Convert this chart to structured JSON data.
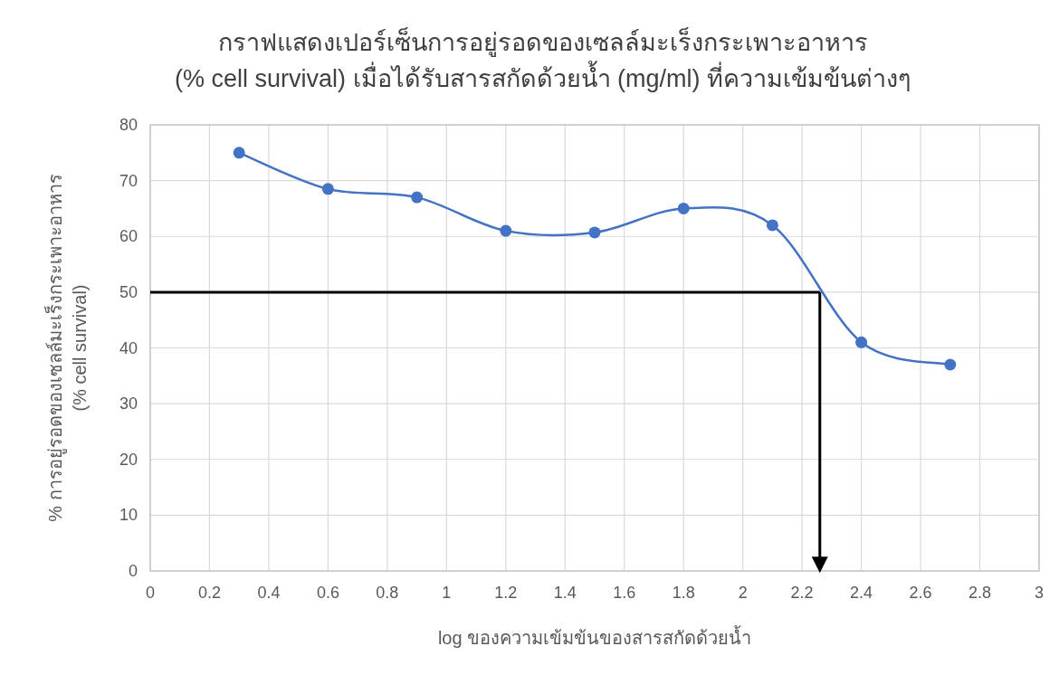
{
  "chart_data": {
    "type": "line",
    "title": "กราฟแสดงเปอร์เซ็นการอยู่รอดของเซลล์มะเร็งกระเพาะอาหาร\n(% cell survival) เมื่อได้รับสารสกัดด้วยน้ำ  (mg/ml) ที่ความเข้มข้นต่างๆ",
    "xlabel": "log ของความเข้มข้นของสารสกัดด้วยน้ำ",
    "ylabel": "% การอยู่รอดของเซลล์มะเร็งกระเพาะอาหาร\n(% cell survival)",
    "x": [
      0.3,
      0.6,
      0.9,
      1.2,
      1.5,
      1.8,
      2.1,
      2.4,
      2.7
    ],
    "series": [
      {
        "color": "#4472c4",
        "values": [
          75,
          68.5,
          67,
          61,
          60.7,
          65,
          62,
          41,
          37
        ]
      }
    ],
    "xlim": [
      0,
      3
    ],
    "xticks": [
      0,
      0.2,
      0.4,
      0.6,
      0.8,
      1,
      1.2,
      1.4,
      1.6,
      1.8,
      2,
      2.2,
      2.4,
      2.6,
      2.8,
      3
    ],
    "ylim": [
      0,
      80
    ],
    "yticks": [
      0,
      10,
      20,
      30,
      40,
      50,
      60,
      70,
      80
    ],
    "grid": true,
    "marker": "circle",
    "line_style": "solid",
    "ref_lines": [
      {
        "axis": "y",
        "value": 50,
        "color": "#000000",
        "line_style": "solid"
      },
      {
        "axis": "x",
        "value": 2.26,
        "color": "#000000",
        "line_style": "solid"
      }
    ]
  }
}
